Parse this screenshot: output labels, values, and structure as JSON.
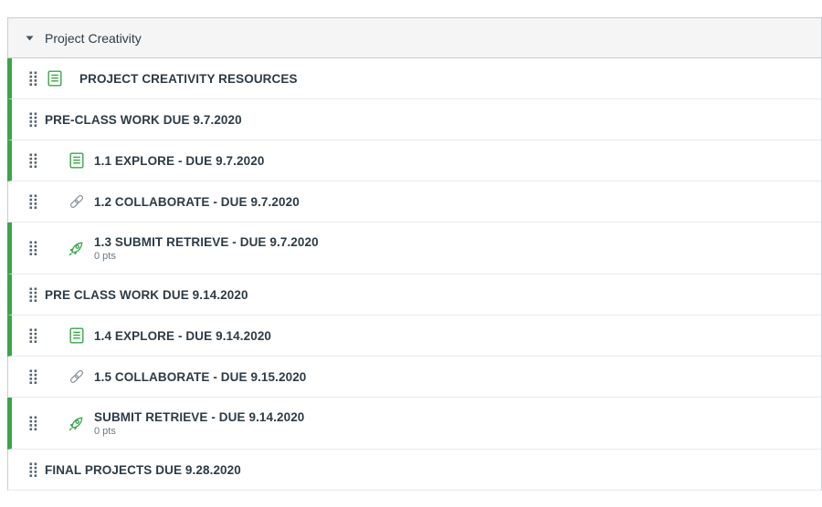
{
  "module": {
    "title": "Project Creativity",
    "items": [
      {
        "type": "page",
        "title": "PROJECT CREATIVITY RESOURCES",
        "published": true,
        "indent": 0
      },
      {
        "type": "subheader",
        "title": "PRE-CLASS WORK DUE 9.7.2020",
        "published": true
      },
      {
        "type": "page",
        "title": "1.1 EXPLORE - DUE 9.7.2020",
        "published": true,
        "indent": 1
      },
      {
        "type": "link",
        "title": "1.2 COLLABORATE - DUE 9.7.2020",
        "published": false,
        "indent": 1
      },
      {
        "type": "quiz",
        "title": "1.3 SUBMIT RETRIEVE - DUE 9.7.2020",
        "published": true,
        "indent": 1,
        "points": "0 pts"
      },
      {
        "type": "subheader",
        "title": "PRE CLASS WORK DUE 9.14.2020",
        "published": true
      },
      {
        "type": "page",
        "title": "1.4 EXPLORE - DUE 9.14.2020",
        "published": true,
        "indent": 1
      },
      {
        "type": "link",
        "title": "1.5 COLLABORATE - DUE 9.15.2020",
        "published": false,
        "indent": 1
      },
      {
        "type": "quiz",
        "title": "SUBMIT RETRIEVE - DUE 9.14.2020",
        "published": true,
        "indent": 1,
        "points": "0 pts"
      },
      {
        "type": "subheader",
        "title": "FINAL PROJECTS DUE 9.28.2020",
        "published": false
      }
    ]
  },
  "colors": {
    "published_green": "#3aa54a",
    "text": "#2d3b45",
    "muted_text": "#6c7780",
    "icon_gray": "#8b969e"
  },
  "icons": {
    "caret": "collapse-caret-icon",
    "drag": "drag-handle-icon",
    "page": "page-icon",
    "link": "link-icon",
    "quiz": "quiz-rocket-icon"
  }
}
